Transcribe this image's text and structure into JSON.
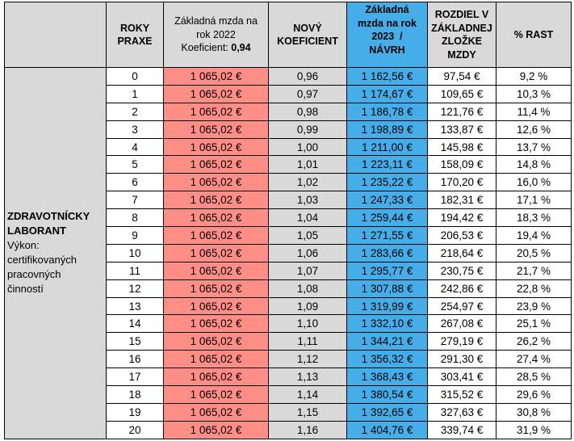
{
  "headers": {
    "years": [
      "ROKY",
      "PRAXE"
    ],
    "base": [
      "Základná mzda na",
      "rok 2022"
    ],
    "base_coef_label": "Koeficient:",
    "base_coef_value": "0,94",
    "coef": [
      "NOVÝ",
      "KOEFICIENT"
    ],
    "new_salary": [
      "Základná",
      "mzda na rok",
      "2023  /",
      "NÁVRH"
    ],
    "diff": [
      "ROZDIEL V",
      "ZÁKLADNEJ",
      "ZLOŽKE",
      "MZDY"
    ],
    "pct": "% RAST"
  },
  "category": {
    "title": [
      "ZDRAVOTNÍCKY",
      "LABORANT"
    ],
    "desc": [
      "Výkon:",
      "certifikovaných",
      "pracovných",
      "činností"
    ]
  },
  "rows": [
    {
      "years": "0",
      "base": "1 065,02 €",
      "coef": "0,96",
      "new": "1 162,56 €",
      "diff": "97,54 €",
      "pct": "9,2 %"
    },
    {
      "years": "1",
      "base": "1 065,02 €",
      "coef": "0,97",
      "new": "1 174,67 €",
      "diff": "109,65 €",
      "pct": "10,3 %"
    },
    {
      "years": "2",
      "base": "1 065,02 €",
      "coef": "0,98",
      "new": "1 186,78 €",
      "diff": "121,76 €",
      "pct": "11,4 %"
    },
    {
      "years": "3",
      "base": "1 065,02 €",
      "coef": "0,99",
      "new": "1 198,89 €",
      "diff": "133,87 €",
      "pct": "12,6 %"
    },
    {
      "years": "4",
      "base": "1 065,02 €",
      "coef": "1,00",
      "new": "1 211,00 €",
      "diff": "145,98 €",
      "pct": "13,7 %"
    },
    {
      "years": "5",
      "base": "1 065,02 €",
      "coef": "1,01",
      "new": "1 223,11 €",
      "diff": "158,09 €",
      "pct": "14,8 %"
    },
    {
      "years": "6",
      "base": "1 065,02 €",
      "coef": "1,02",
      "new": "1 235,22 €",
      "diff": "170,20 €",
      "pct": "16,0 %"
    },
    {
      "years": "7",
      "base": "1 065,02 €",
      "coef": "1,03",
      "new": "1 247,33 €",
      "diff": "182,31 €",
      "pct": "17,1 %"
    },
    {
      "years": "8",
      "base": "1 065,02 €",
      "coef": "1,04",
      "new": "1 259,44 €",
      "diff": "194,42 €",
      "pct": "18,3 %"
    },
    {
      "years": "9",
      "base": "1 065,02 €",
      "coef": "1,05",
      "new": "1 271,55 €",
      "diff": "206,53 €",
      "pct": "19,4 %"
    },
    {
      "years": "10",
      "base": "1 065,02 €",
      "coef": "1,06",
      "new": "1 283,66 €",
      "diff": "218,64 €",
      "pct": "20,5 %"
    },
    {
      "years": "11",
      "base": "1 065,02 €",
      "coef": "1,07",
      "new": "1 295,77 €",
      "diff": "230,75 €",
      "pct": "21,7 %"
    },
    {
      "years": "12",
      "base": "1 065,02 €",
      "coef": "1,08",
      "new": "1 307,88 €",
      "diff": "242,86 €",
      "pct": "22,8 %"
    },
    {
      "years": "13",
      "base": "1 065,02 €",
      "coef": "1,09",
      "new": "1 319,99 €",
      "diff": "254,97 €",
      "pct": "23,9 %"
    },
    {
      "years": "14",
      "base": "1 065,02 €",
      "coef": "1,10",
      "new": "1 332,10 €",
      "diff": "267,08 €",
      "pct": "25,1 %"
    },
    {
      "years": "15",
      "base": "1 065,02 €",
      "coef": "1,11",
      "new": "1 344,21 €",
      "diff": "279,19 €",
      "pct": "26,2 %"
    },
    {
      "years": "16",
      "base": "1 065,02 €",
      "coef": "1,12",
      "new": "1 356,32 €",
      "diff": "291,30 €",
      "pct": "27,4 %"
    },
    {
      "years": "17",
      "base": "1 065,02 €",
      "coef": "1,13",
      "new": "1 368,43 €",
      "diff": "303,41 €",
      "pct": "28,5 %"
    },
    {
      "years": "18",
      "base": "1 065,02 €",
      "coef": "1,14",
      "new": "1 380,54 €",
      "diff": "315,52 €",
      "pct": "29,6 %"
    },
    {
      "years": "19",
      "base": "1 065,02 €",
      "coef": "1,15",
      "new": "1 392,65 €",
      "diff": "327,63 €",
      "pct": "30,8 %"
    },
    {
      "years": "20",
      "base": "1 065,02 €",
      "coef": "1,16",
      "new": "1 404,76 €",
      "diff": "339,74 €",
      "pct": "31,9 %"
    }
  ],
  "colors": {
    "header_gray": "#d9d9d9",
    "base_red": "#ff8e86",
    "new_blue": "#45aee8"
  }
}
